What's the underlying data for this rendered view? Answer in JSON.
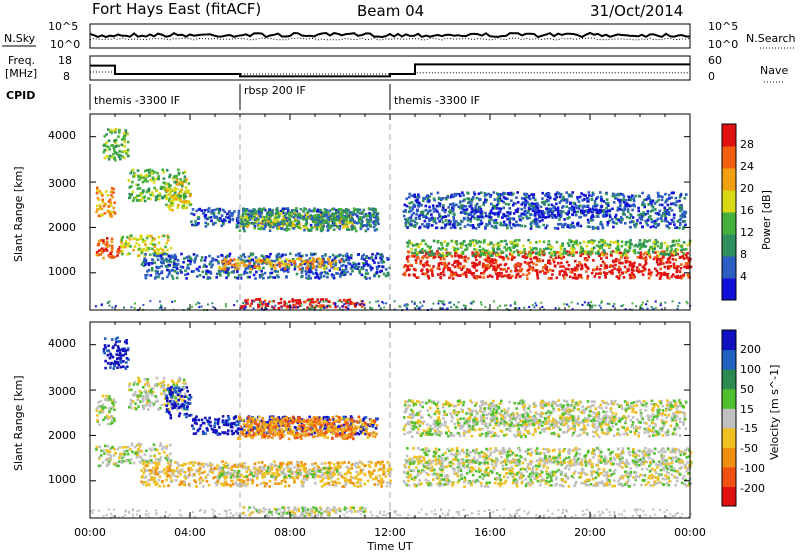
{
  "header": {
    "title": "Fort Hays East (fitACF)",
    "beam": "Beam 04",
    "date": "31/Oct/2014"
  },
  "noise_panel": {
    "left_label": "N.Sky",
    "right_label": "N.Search",
    "left_ticks": [
      "10^5",
      "10^0"
    ],
    "right_ticks": [
      "10^5",
      "10^0"
    ]
  },
  "freq_panel": {
    "left_label_line1": "Freq.",
    "left_label_line2": "[MHz]",
    "right_label": "Nave",
    "left_ticks": [
      "18",
      "8"
    ],
    "right_ticks": [
      "60",
      "0"
    ]
  },
  "cpid": {
    "label": "CPID",
    "segments": [
      {
        "name": "themis -3300 IF",
        "start_h": 0,
        "end_h": 6
      },
      {
        "name": "rbsp 200 IF",
        "start_h": 6,
        "end_h": 12
      },
      {
        "name": "themis -3300 IF",
        "start_h": 12,
        "end_h": 24
      }
    ]
  },
  "axes": {
    "ylabel": "Slant Range [km]",
    "xlabel": "Time UT",
    "y_ticks": [
      "1000",
      "2000",
      "3000",
      "4000"
    ],
    "x_ticks": [
      "00:00",
      "04:00",
      "08:00",
      "12:00",
      "16:00",
      "20:00",
      "00:00"
    ]
  },
  "colors": {
    "power": [
      "#1010d8",
      "#2c5dc0",
      "#2e8f5c",
      "#46b03c",
      "#d8d814",
      "#f0a010",
      "#f06010",
      "#e01010"
    ],
    "velocity": [
      "#e01010",
      "#f05010",
      "#f09010",
      "#f0c020",
      "#c0c0c0",
      "#50c030",
      "#2a8a50",
      "#2060c0",
      "#1010c0"
    ],
    "ground": "#c0c0c0"
  },
  "power_colorbar": {
    "label": "Power [dB]",
    "ticks": [
      "4",
      "8",
      "12",
      "16",
      "20",
      "24",
      "28"
    ]
  },
  "velocity_colorbar": {
    "label": "Velocity [m s^-1]",
    "ticks": [
      "200",
      "100",
      "50",
      "15",
      "-15",
      "-50",
      "-100",
      "-200"
    ]
  },
  "chart_data": [
    {
      "type": "line",
      "series": [
        {
          "name": "N.Sky"
        },
        {
          "name": "N.Search"
        }
      ]
    },
    {
      "type": "line",
      "series": [
        {
          "name": "Freq.",
          "x": [
            0,
            1,
            1,
            6,
            6,
            12,
            12,
            13,
            13,
            24
          ],
          "values": [
            14,
            14,
            10.5,
            10.5,
            9.5,
            9.5,
            10.5,
            10.5,
            14.5,
            14.5
          ]
        },
        {
          "name": "Nave",
          "x": [
            0,
            1,
            1,
            13,
            13,
            24
          ],
          "values": [
            20,
            20,
            15,
            15,
            18,
            18
          ]
        }
      ]
    },
    {
      "type": "heatmap",
      "x_range_h": [
        0,
        24
      ],
      "y_range_km": [
        180,
        4500
      ],
      "bands": [
        {
          "t0": 0.2,
          "t1": 1.0,
          "r0": 2250,
          "r1": 2900,
          "power_idx": 5,
          "vel_idx": 4
        },
        {
          "t0": 0.2,
          "t1": 1.2,
          "r0": 1350,
          "r1": 1800,
          "power_idx": 6,
          "vel_idx": 4
        },
        {
          "t0": 1.2,
          "t1": 3.2,
          "r0": 1400,
          "r1": 1850,
          "power_idx": 4,
          "vel_idx": 4
        },
        {
          "t0": 0.5,
          "t1": 1.5,
          "r0": 3500,
          "r1": 4200,
          "power_idx": 3,
          "vel_idx": 8
        },
        {
          "t0": 1.5,
          "t1": 3.8,
          "r0": 2600,
          "r1": 3300,
          "power_idx": 3,
          "vel_idx": 4
        },
        {
          "t0": 3.0,
          "t1": 4.0,
          "r0": 2400,
          "r1": 3100,
          "power_idx": 4,
          "vel_idx": 8
        },
        {
          "t0": 4.0,
          "t1": 11.5,
          "r0": 2050,
          "r1": 2450,
          "power_idx": 1,
          "vel_idx": 8
        },
        {
          "t0": 6.0,
          "t1": 10.5,
          "r0": 2000,
          "r1": 2350,
          "power_idx": 4,
          "vel_idx": 2
        },
        {
          "t0": 5.8,
          "t1": 11.5,
          "r0": 1950,
          "r1": 2450,
          "power_idx": 2,
          "vel_idx": 2
        },
        {
          "t0": 2.0,
          "t1": 12.0,
          "r0": 900,
          "r1": 1450,
          "power_idx": 1,
          "vel_idx": 3
        },
        {
          "t0": 5.0,
          "t1": 10.0,
          "r0": 1100,
          "r1": 1350,
          "power_idx": 5,
          "vel_idx": 4
        },
        {
          "t0": 6.0,
          "t1": 11.0,
          "r0": 250,
          "r1": 450,
          "power_idx": 7,
          "vel_idx": 4
        },
        {
          "t0": 12.5,
          "t1": 24.0,
          "r0": 900,
          "r1": 1500,
          "power_idx": 7,
          "vel_idx": 4
        },
        {
          "t0": 12.6,
          "t1": 24.0,
          "r0": 1400,
          "r1": 1750,
          "power_idx": 3,
          "vel_idx": 4
        },
        {
          "t0": 12.5,
          "t1": 23.8,
          "r0": 2000,
          "r1": 2800,
          "power_idx": 1,
          "vel_idx": 4
        },
        {
          "t0": 15.0,
          "t1": 21.0,
          "r0": 2250,
          "r1": 2450,
          "power_idx": 0,
          "vel_idx": 4
        }
      ]
    },
    {
      "type": "heatmap",
      "title": "",
      "xlabel": "Time UT",
      "ylabel": "Slant Range [km]"
    }
  ]
}
